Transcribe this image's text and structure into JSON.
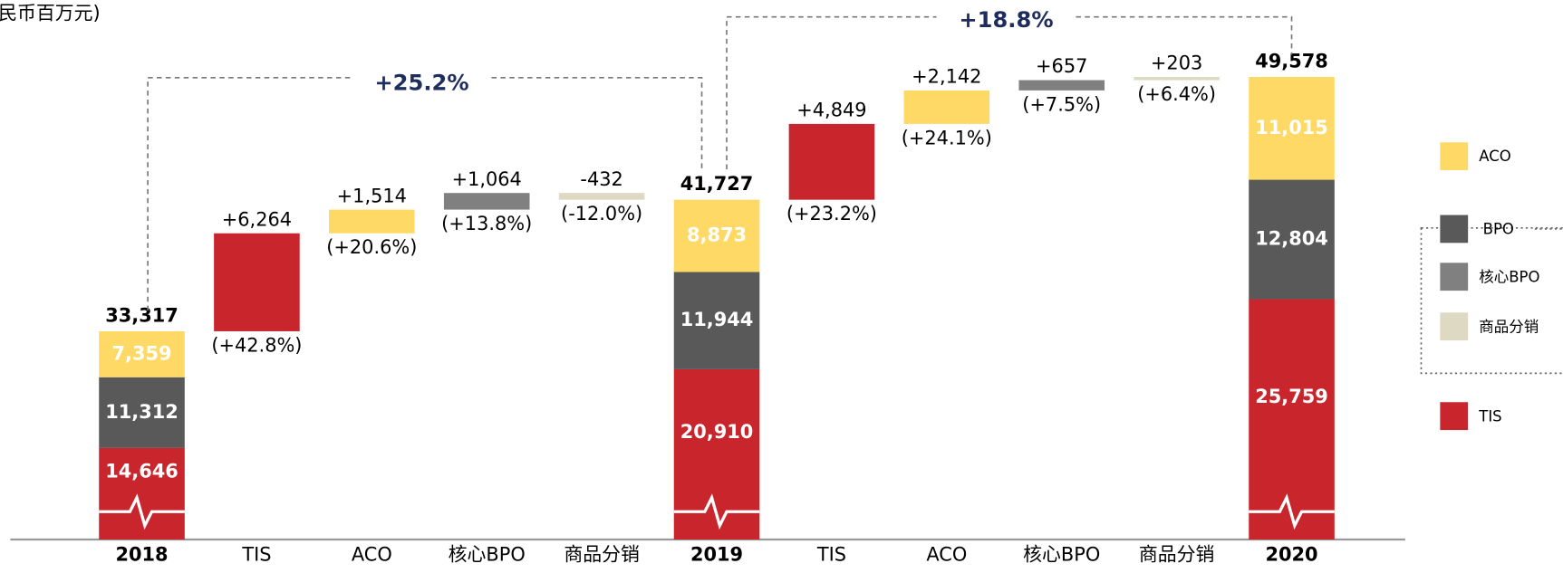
{
  "title": "民币百万元)",
  "chart_data": {
    "type": "waterfall",
    "categories": [
      "2018",
      "TIS",
      "ACO",
      "核心BPO",
      "商品分销",
      "2019",
      "TIS",
      "ACO",
      "核心BPO",
      "商品分销",
      "2020"
    ],
    "values": [
      33317,
      6264,
      1514,
      1064,
      -432,
      41727,
      4849,
      2142,
      657,
      203,
      49578
    ],
    "value_labels": [
      "33,317",
      "+6,264",
      "+1,514",
      "+1,064",
      "-432",
      "41,727",
      "+4,849",
      "+2,142",
      "+657",
      "+203",
      "49,578"
    ],
    "change_labels": [
      null,
      "(+42.8%)",
      "(+20.6%)",
      "(+13.8%)",
      "(-12.0%)",
      null,
      "(+23.2%)",
      "(+24.1%)",
      "(+7.5%)",
      "(+6.4%)",
      null
    ],
    "growth_labels": [
      "+25.2%",
      "+18.8%"
    ],
    "ylim": [
      20000,
      54500
    ],
    "series": [
      {
        "name": "ACO",
        "color": "#ffd966",
        "values": [
          7359,
          null,
          null,
          null,
          null,
          8873,
          null,
          null,
          null,
          null,
          11015
        ],
        "value_labels": [
          "7,359",
          null,
          null,
          null,
          null,
          "8,873",
          null,
          null,
          null,
          null,
          "11,015"
        ]
      },
      {
        "name": "BPO",
        "color": "#595959",
        "values": [
          11312,
          null,
          null,
          null,
          null,
          11944,
          null,
          null,
          null,
          null,
          12804
        ],
        "value_labels": [
          "11,312",
          null,
          null,
          null,
          null,
          "11,944",
          null,
          null,
          null,
          null,
          "12,804"
        ]
      },
      {
        "name": "核心BPO",
        "color": "#808080"
      },
      {
        "name": "商品分销",
        "color": "#ddd9c3"
      },
      {
        "name": "TIS",
        "color": "#c9252c",
        "values": [
          14646,
          null,
          null,
          null,
          null,
          20910,
          null,
          null,
          null,
          null,
          25759
        ],
        "value_labels": [
          "14,646",
          null,
          null,
          null,
          null,
          "20,910",
          null,
          null,
          null,
          null,
          "25,759"
        ]
      }
    ]
  }
}
